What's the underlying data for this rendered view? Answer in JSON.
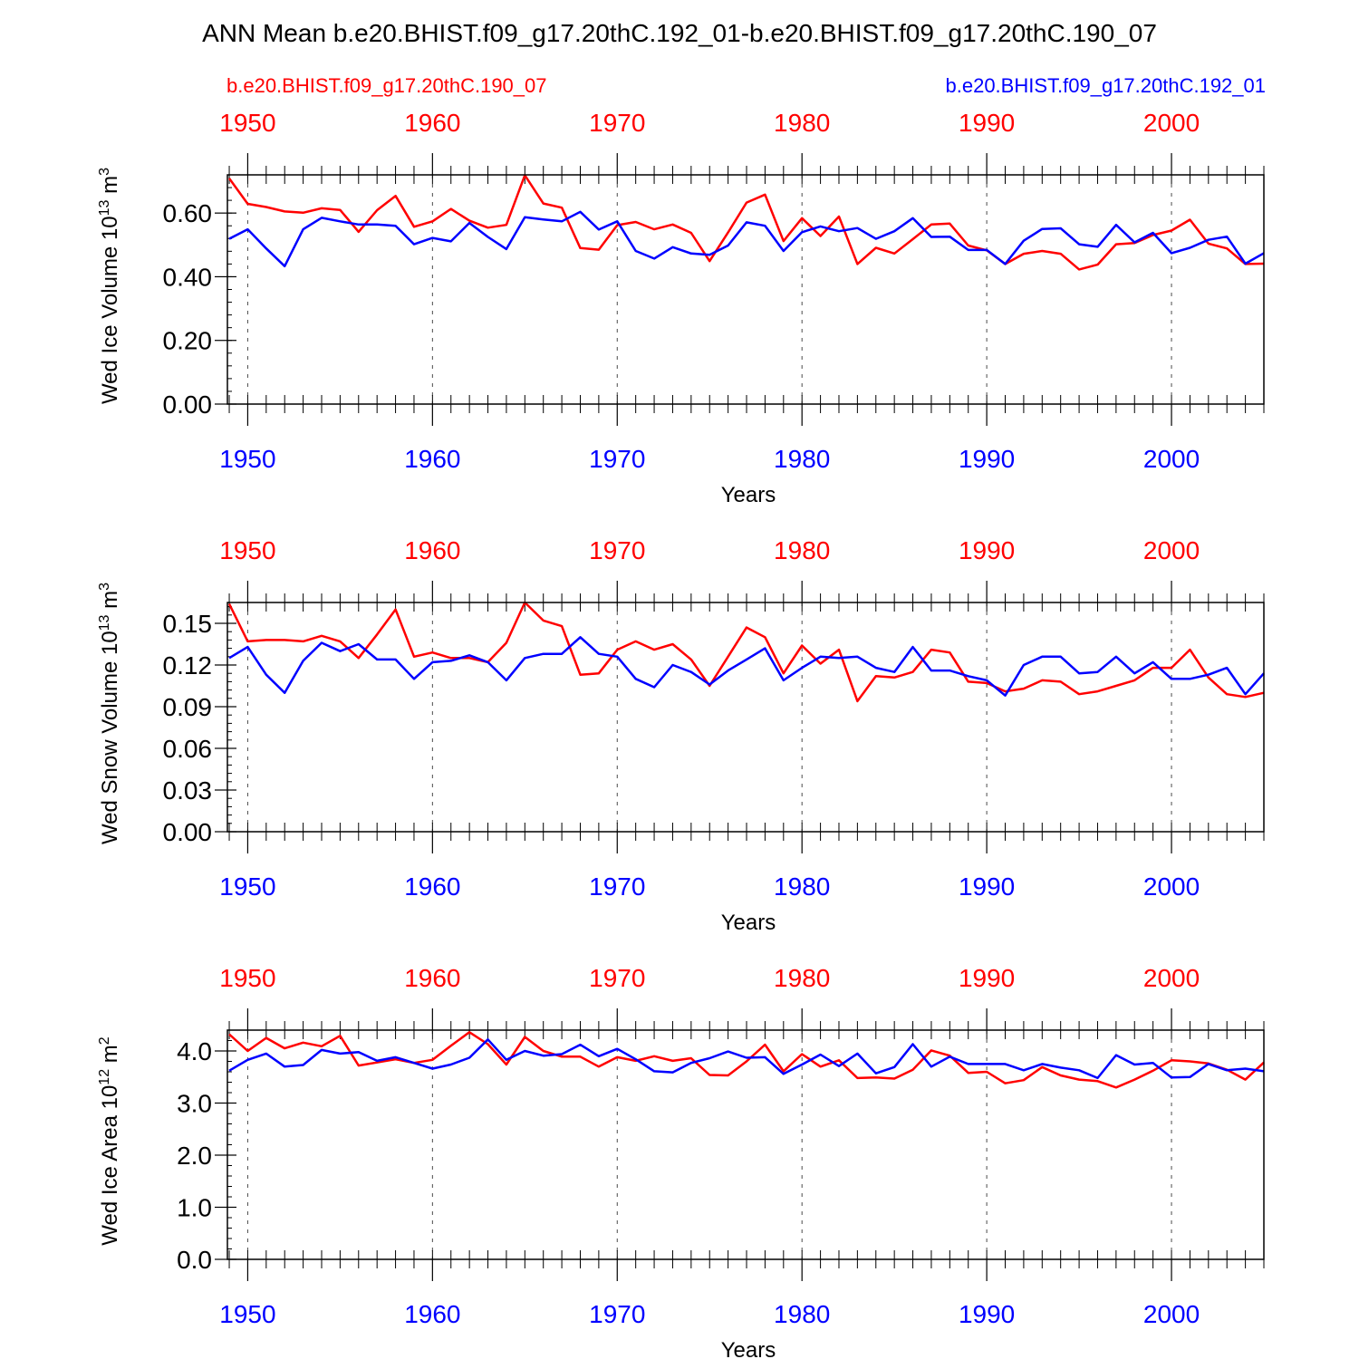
{
  "title": "ANN Mean b.e20.BHIST.f09_g17.20thC.192_01-b.e20.BHIST.f09_g17.20thC.190_07",
  "legend": {
    "red_case": "b.e20.BHIST.f09_g17.20thC.190_07",
    "blue_case": "b.e20.BHIST.f09_g17.20thC.192_01"
  },
  "colors": {
    "red": "#ff0000",
    "blue": "#0000ff",
    "axis": "#000000"
  },
  "chart_data": [
    {
      "type": "line",
      "ylabel_main": "Wed Ice Volume 10",
      "ylabel_exp": "13",
      "ylabel_unit": " m",
      "ylabel_unit_exp": "3",
      "xlabel": "Years",
      "xlim": [
        1948.9,
        2005
      ],
      "ylim": [
        0,
        0.72
      ],
      "yticks": [
        0,
        0.2,
        0.4,
        0.6
      ],
      "ytick_labels": [
        "0.00",
        "0.20",
        "0.40",
        "0.60"
      ],
      "xticks": [
        1950,
        1960,
        1970,
        1980,
        1990,
        2000
      ],
      "xtick_labels": [
        "1950",
        "1960",
        "1970",
        "1980",
        "1990",
        "2000"
      ],
      "x_start": 1949,
      "series": [
        {
          "name": "b.e20.BHIST.f09_g17.20thC.190_07",
          "color": "red",
          "values": [
            0.709,
            0.629,
            0.619,
            0.605,
            0.601,
            0.615,
            0.61,
            0.541,
            0.609,
            0.654,
            0.557,
            0.574,
            0.613,
            0.576,
            0.554,
            0.563,
            0.719,
            0.63,
            0.617,
            0.49,
            0.485,
            0.562,
            0.572,
            0.549,
            0.564,
            0.538,
            0.449,
            0.539,
            0.633,
            0.658,
            0.512,
            0.584,
            0.528,
            0.589,
            0.44,
            0.491,
            0.473,
            0.518,
            0.564,
            0.567,
            0.498,
            0.483,
            0.44,
            0.472,
            0.481,
            0.472,
            0.423,
            0.438,
            0.502,
            0.506,
            0.531,
            0.545,
            0.579,
            0.504,
            0.489,
            0.44,
            0.441
          ]
        },
        {
          "name": "b.e20.BHIST.f09_g17.20thC.192_01",
          "color": "blue",
          "values": [
            0.519,
            0.549,
            0.489,
            0.433,
            0.549,
            0.585,
            0.574,
            0.564,
            0.564,
            0.56,
            0.502,
            0.522,
            0.511,
            0.569,
            0.525,
            0.487,
            0.587,
            0.58,
            0.574,
            0.604,
            0.548,
            0.574,
            0.481,
            0.457,
            0.493,
            0.473,
            0.469,
            0.498,
            0.571,
            0.56,
            0.481,
            0.54,
            0.558,
            0.543,
            0.553,
            0.519,
            0.543,
            0.584,
            0.525,
            0.526,
            0.484,
            0.484,
            0.44,
            0.513,
            0.55,
            0.552,
            0.502,
            0.494,
            0.563,
            0.508,
            0.538,
            0.474,
            0.491,
            0.516,
            0.526,
            0.441,
            0.474
          ]
        }
      ]
    },
    {
      "type": "line",
      "ylabel_main": "Wed Snow Volume 10",
      "ylabel_exp": "13",
      "ylabel_unit": " m",
      "ylabel_unit_exp": "3",
      "xlabel": "Years",
      "xlim": [
        1948.9,
        2005
      ],
      "ylim": [
        0,
        0.165
      ],
      "yticks": [
        0,
        0.03,
        0.06,
        0.09,
        0.12,
        0.15
      ],
      "ytick_labels": [
        "0.00",
        "0.03",
        "0.06",
        "0.09",
        "0.12",
        "0.15"
      ],
      "xticks": [
        1950,
        1960,
        1970,
        1980,
        1990,
        2000
      ],
      "xtick_labels": [
        "1950",
        "1960",
        "1970",
        "1980",
        "1990",
        "2000"
      ],
      "x_start": 1949,
      "series": [
        {
          "name": "b.e20.BHIST.f09_g17.20thC.190_07",
          "color": "red",
          "values": [
            0.164,
            0.137,
            0.138,
            0.138,
            0.137,
            0.141,
            0.137,
            0.125,
            0.142,
            0.16,
            0.126,
            0.129,
            0.125,
            0.125,
            0.122,
            0.136,
            0.165,
            0.152,
            0.148,
            0.113,
            0.114,
            0.131,
            0.137,
            0.131,
            0.135,
            0.124,
            0.105,
            0.126,
            0.147,
            0.14,
            0.114,
            0.134,
            0.121,
            0.131,
            0.094,
            0.112,
            0.111,
            0.115,
            0.131,
            0.129,
            0.108,
            0.107,
            0.101,
            0.103,
            0.109,
            0.108,
            0.099,
            0.101,
            0.105,
            0.109,
            0.118,
            0.118,
            0.131,
            0.111,
            0.099,
            0.097,
            0.1
          ]
        },
        {
          "name": "b.e20.BHIST.f09_g17.20thC.192_01",
          "color": "blue",
          "values": [
            0.125,
            0.133,
            0.113,
            0.1,
            0.123,
            0.136,
            0.13,
            0.135,
            0.124,
            0.124,
            0.11,
            0.122,
            0.123,
            0.127,
            0.122,
            0.109,
            0.125,
            0.128,
            0.128,
            0.14,
            0.128,
            0.126,
            0.11,
            0.104,
            0.12,
            0.115,
            0.106,
            0.116,
            0.124,
            0.132,
            0.109,
            0.118,
            0.126,
            0.125,
            0.126,
            0.118,
            0.115,
            0.133,
            0.116,
            0.116,
            0.112,
            0.109,
            0.098,
            0.12,
            0.126,
            0.126,
            0.114,
            0.115,
            0.126,
            0.114,
            0.122,
            0.11,
            0.11,
            0.113,
            0.118,
            0.099,
            0.114
          ]
        }
      ]
    },
    {
      "type": "line",
      "ylabel_main": "Wed Ice Area 10",
      "ylabel_exp": "12",
      "ylabel_unit": " m",
      "ylabel_unit_exp": "2",
      "xlabel": "Years",
      "xlim": [
        1948.9,
        2005
      ],
      "ylim": [
        0,
        4.4
      ],
      "yticks": [
        0,
        1,
        2,
        3,
        4
      ],
      "ytick_labels": [
        "0.0",
        "1.0",
        "2.0",
        "3.0",
        "4.0"
      ],
      "xticks": [
        1950,
        1960,
        1970,
        1980,
        1990,
        2000
      ],
      "xtick_labels": [
        "1950",
        "1960",
        "1970",
        "1980",
        "1990",
        "2000"
      ],
      "x_start": 1949,
      "series": [
        {
          "name": "b.e20.BHIST.f09_g17.20thC.190_07",
          "color": "red",
          "values": [
            4.32,
            4.0,
            4.25,
            4.05,
            4.16,
            4.09,
            4.29,
            3.72,
            3.78,
            3.84,
            3.77,
            3.83,
            4.1,
            4.36,
            4.13,
            3.74,
            4.27,
            4.0,
            3.89,
            3.89,
            3.7,
            3.88,
            3.81,
            3.9,
            3.81,
            3.86,
            3.54,
            3.53,
            3.8,
            4.12,
            3.61,
            3.94,
            3.7,
            3.82,
            3.48,
            3.49,
            3.47,
            3.64,
            4.01,
            3.91,
            3.58,
            3.6,
            3.38,
            3.44,
            3.69,
            3.53,
            3.45,
            3.42,
            3.3,
            3.45,
            3.62,
            3.82,
            3.8,
            3.76,
            3.64,
            3.45,
            3.78
          ]
        },
        {
          "name": "b.e20.BHIST.f09_g17.20thC.192_01",
          "color": "blue",
          "values": [
            3.62,
            3.83,
            3.95,
            3.7,
            3.73,
            4.02,
            3.95,
            3.98,
            3.81,
            3.88,
            3.77,
            3.66,
            3.74,
            3.87,
            4.22,
            3.83,
            4.0,
            3.91,
            3.94,
            4.12,
            3.9,
            4.04,
            3.84,
            3.61,
            3.59,
            3.77,
            3.86,
            3.99,
            3.87,
            3.88,
            3.56,
            3.74,
            3.93,
            3.71,
            3.95,
            3.57,
            3.69,
            4.13,
            3.7,
            3.89,
            3.75,
            3.75,
            3.75,
            3.63,
            3.75,
            3.68,
            3.63,
            3.48,
            3.92,
            3.74,
            3.77,
            3.49,
            3.5,
            3.75,
            3.63,
            3.66,
            3.61
          ]
        }
      ]
    }
  ]
}
